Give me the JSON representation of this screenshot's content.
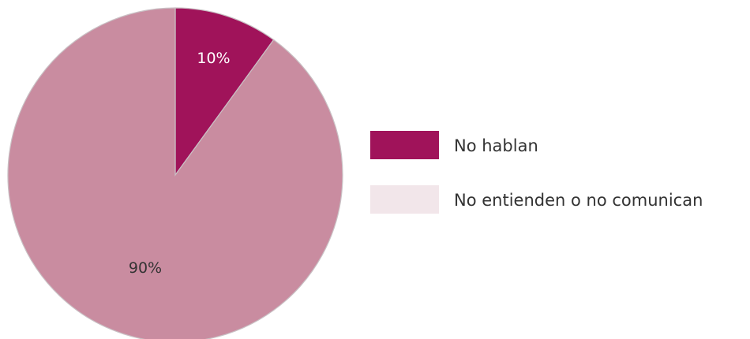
{
  "chart_data": {
    "type": "pie",
    "categories": [
      "No hablan",
      "No entienden o no comunican"
    ],
    "values": [
      10,
      90
    ],
    "value_labels": [
      "10%",
      "90%"
    ],
    "colors": [
      "#a0135a",
      "#c98ca0"
    ],
    "label_colors": [
      "#ffffff",
      "#333333"
    ],
    "legend": {
      "placement": "right",
      "entries": [
        "No hablan",
        "No entienden o no comunican"
      ],
      "swatch_colors": [
        "#a0135a",
        "#f2e6ea"
      ]
    },
    "start_angle": "top",
    "direction": "clockwise"
  }
}
